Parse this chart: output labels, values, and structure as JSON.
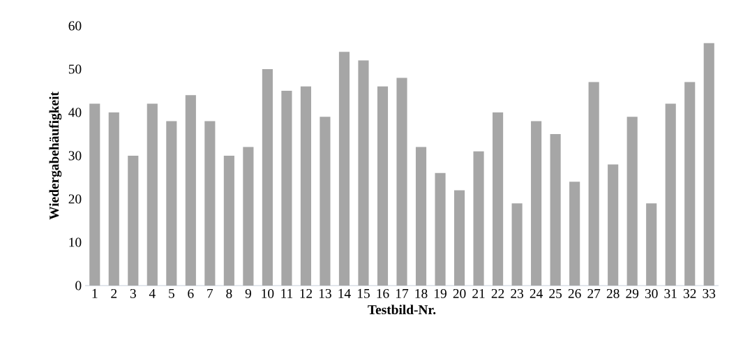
{
  "chart_data": {
    "type": "bar",
    "xlabel": "Testbild-Nr.",
    "ylabel": "Wiedergabehäufigkeit",
    "categories": [
      "1",
      "2",
      "3",
      "4",
      "5",
      "6",
      "7",
      "8",
      "9",
      "10",
      "11",
      "12",
      "13",
      "14",
      "15",
      "16",
      "17",
      "18",
      "19",
      "20",
      "21",
      "22",
      "23",
      "24",
      "25",
      "26",
      "27",
      "28",
      "29",
      "30",
      "31",
      "32",
      "33"
    ],
    "values": [
      42,
      40,
      30,
      42,
      38,
      44,
      38,
      30,
      32,
      50,
      45,
      46,
      39,
      54,
      52,
      46,
      48,
      32,
      26,
      22,
      31,
      40,
      19,
      38,
      35,
      24,
      47,
      28,
      39,
      19,
      42,
      47,
      56
    ],
    "color": "#a6a6a6",
    "ylim": [
      0,
      60
    ],
    "yticks": [
      0,
      10,
      20,
      30,
      40,
      50,
      60
    ],
    "grid": false
  }
}
